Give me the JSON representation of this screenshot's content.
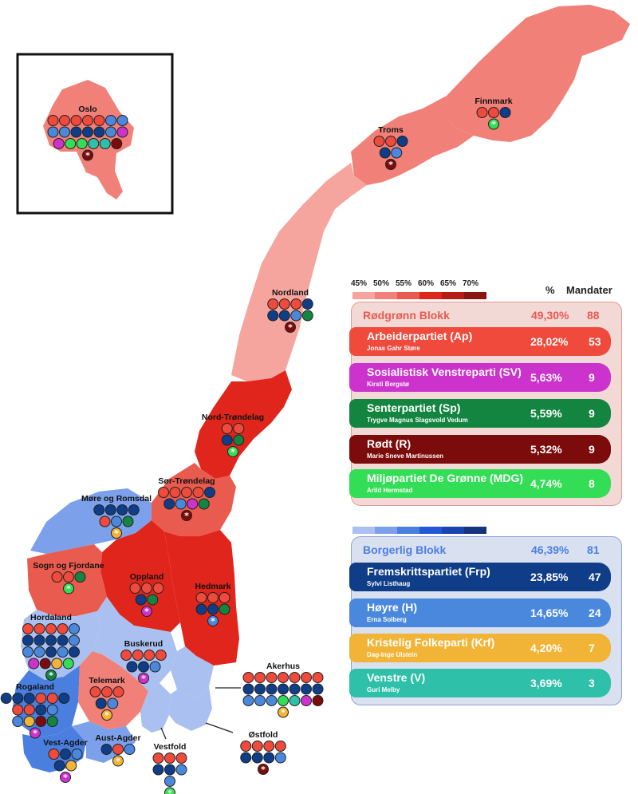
{
  "colors": {
    "ap": "#ef4a3c",
    "sv": "#cc33cc",
    "sp": "#148540",
    "r": "#7c0b0b",
    "mdg": "#33dd55",
    "frp": "#0f3d87",
    "h": "#4a88dd",
    "krf": "#f2b436",
    "v": "#2ec0a8",
    "red_blok_bg": "#f3d9d6",
    "red_blok_border": "#e59a92",
    "blue_blok_bg": "#d9e0f0",
    "blue_blok_border": "#8ea4d8"
  },
  "legend": {
    "red_scale": [
      {
        "label": "45%",
        "color": "#f5a59e"
      },
      {
        "label": "50%",
        "color": "#f08078"
      },
      {
        "label": "55%",
        "color": "#ea5b4f"
      },
      {
        "label": "60%",
        "color": "#e0261c"
      },
      {
        "label": "65%",
        "color": "#b81a14"
      },
      {
        "label": "70%",
        "color": "#8c1410"
      }
    ],
    "blue_scale": [
      "#a9c0f0",
      "#7da0ea",
      "#4a7fe0",
      "#2359d6",
      "#1a45b0",
      "#16347e"
    ],
    "pct_header": "%",
    "seats_header": "Mandater"
  },
  "blocks": [
    {
      "name": "Rødgrønn Blokk",
      "pct": "49,30%",
      "seats": "88",
      "text_color": "#e85a4e",
      "parties": [
        {
          "name": "Arbeiderpartiet (Ap)",
          "leader": "Jonas Gahr Støre",
          "pct": "28,02%",
          "seats": "53",
          "color": "#ef4a3c"
        },
        {
          "name": "Sosialistisk Venstreparti (SV)",
          "leader": "Kirsti Bergstø",
          "pct": "5,63%",
          "seats": "9",
          "color": "#cc33cc"
        },
        {
          "name": "Senterpartiet (Sp)",
          "leader": "Trygve Magnus Slagsvold Vedum",
          "pct": "5,59%",
          "seats": "9",
          "color": "#148540"
        },
        {
          "name": "Rødt (R)",
          "leader": "Marie Sneve Martinussen",
          "pct": "5,32%",
          "seats": "9",
          "color": "#7c0b0b"
        },
        {
          "name": "Miljøpartiet De Grønne (MDG)",
          "leader": "Arild Hermstad",
          "pct": "4,74%",
          "seats": "8",
          "color": "#33dd55"
        }
      ]
    },
    {
      "name": "Borgerlig Blokk",
      "pct": "46,39%",
      "seats": "81",
      "text_color": "#4a7fe0",
      "parties": [
        {
          "name": "Fremskrittspartiet (Frp)",
          "leader": "Sylvi Listhaug",
          "pct": "23,85%",
          "seats": "47",
          "color": "#0f3d87"
        },
        {
          "name": "Høyre (H)",
          "leader": "Erna Solberg",
          "pct": "14,65%",
          "seats": "24",
          "color": "#4a88dd"
        },
        {
          "name": "Kristelig Folkeparti (Krf)",
          "leader": "Dag-Inge Ulstein",
          "pct": "4,20%",
          "seats": "7",
          "color": "#f2b436"
        },
        {
          "name": "Venstre (V)",
          "leader": "Guri Melby",
          "pct": "3,69%",
          "seats": "3",
          "color": "#2ec0a8"
        }
      ]
    }
  ],
  "counties": [
    {
      "name": "Oslo",
      "fill": "#f08078",
      "rows": [
        [
          "ap",
          "ap",
          "ap",
          "ap",
          "ap",
          "h",
          "h"
        ],
        [
          "h",
          "h",
          "frp",
          "frp",
          "frp",
          "h",
          "sv"
        ],
        [
          "sv",
          "mdg",
          "mdg",
          "v",
          "v",
          "r"
        ]
      ],
      "star": "r"
    },
    {
      "name": "Finnmark",
      "fill": "#f08078",
      "rows": [
        [
          "ap",
          "ap",
          "frp"
        ]
      ],
      "star": "mdg"
    },
    {
      "name": "Troms",
      "fill": "#f08078",
      "rows": [
        [
          "ap",
          "ap",
          "frp"
        ],
        [
          "frp",
          "h"
        ]
      ],
      "star": "r"
    },
    {
      "name": "Nordland",
      "fill": "#f5a59e",
      "rows": [
        [
          "ap",
          "ap",
          "ap",
          "frp"
        ],
        [
          "frp",
          "frp",
          "h",
          "sp"
        ]
      ],
      "star": "r"
    },
    {
      "name": "Nord-Trøndelag",
      "fill": "#e0261c",
      "rows": [
        [
          "ap",
          "ap"
        ],
        [
          "frp",
          "sp"
        ]
      ],
      "star": "mdg"
    },
    {
      "name": "Sør-Trøndelag",
      "fill": "#ea5b4f",
      "rows": [
        [
          "ap",
          "ap",
          "ap",
          "ap",
          "frp"
        ],
        [
          "frp",
          "h",
          "sv",
          "sp"
        ]
      ],
      "star": "r"
    },
    {
      "name": "Møre og Romsdal",
      "fill": "#7da0ea",
      "rows": [
        [
          "frp",
          "frp",
          "frp",
          "frp"
        ],
        [
          "ap",
          "h",
          "sp"
        ]
      ],
      "star": "krf"
    },
    {
      "name": "Sogn og Fjordane",
      "fill": "#ea5b4f",
      "rows": [
        [
          "ap",
          "ap",
          "sp"
        ]
      ],
      "star": "mdg"
    },
    {
      "name": "Oppland",
      "fill": "#e0261c",
      "rows": [
        [
          "ap",
          "ap",
          "ap"
        ],
        [
          "frp",
          "sp"
        ]
      ],
      "star": "sv"
    },
    {
      "name": "Hedmark",
      "fill": "#e0261c",
      "rows": [
        [
          "ap",
          "ap",
          "ap"
        ],
        [
          "frp",
          "frp",
          "sp"
        ]
      ],
      "star": "h"
    },
    {
      "name": "Hordaland",
      "fill": "#a9c0f0",
      "rows": [
        [
          "ap",
          "ap",
          "ap",
          "ap",
          "h"
        ],
        [
          "frp",
          "frp",
          "frp",
          "frp",
          "h"
        ],
        [
          "h",
          "h",
          "frp",
          "h",
          "frp"
        ],
        [
          "sv",
          "r",
          "krf",
          "mdg"
        ]
      ],
      "star": "sp"
    },
    {
      "name": "Buskerud",
      "fill": "#a9c0f0",
      "rows": [
        [
          "ap",
          "ap",
          "ap",
          "ap"
        ],
        [
          "frp",
          "frp",
          "h"
        ]
      ],
      "star": "sv"
    },
    {
      "name": "Telemark",
      "fill": "#f08078",
      "rows": [
        [
          "ap",
          "ap",
          "ap"
        ],
        [
          "frp",
          "h"
        ]
      ],
      "star": "krf"
    },
    {
      "name": "Akerhus",
      "fill": "#a9c0f0",
      "rows": [
        [
          "ap",
          "ap",
          "ap",
          "ap",
          "ap",
          "ap",
          "ap"
        ],
        [
          "frp",
          "frp",
          "frp",
          "frp",
          "frp",
          "frp",
          "frp"
        ],
        [
          "h",
          "h",
          "h",
          "mdg",
          "v",
          "sv",
          "r"
        ]
      ],
      "star": "krf"
    },
    {
      "name": "Rogaland",
      "fill": "#4a7fe0",
      "rows": [
        [
          "frp",
          "frp",
          "frp",
          "ap",
          "ap",
          "frp"
        ],
        [
          "ap",
          "ap",
          "frp",
          "h"
        ],
        [
          "h",
          "krf",
          "r",
          "sp"
        ]
      ],
      "star": "sv"
    },
    {
      "name": "Aust-Agder",
      "fill": "#7da0ea",
      "rows": [
        [
          "frp",
          "ap",
          "h"
        ]
      ],
      "star": "krf"
    },
    {
      "name": "Vest-Agder",
      "fill": "#4a7fe0",
      "rows": [
        [
          "ap",
          "frp",
          "h"
        ],
        [
          "frp",
          "krf"
        ]
      ],
      "star": "sv"
    },
    {
      "name": "Vestfold",
      "fill": "#a9c0f0",
      "rows": [
        [
          "ap",
          "ap",
          "ap"
        ],
        [
          "frp",
          "frp",
          "h"
        ],
        [
          "h"
        ]
      ],
      "star": "mdg"
    },
    {
      "name": "Østfold",
      "fill": "#a9c0f0",
      "rows": [
        [
          "ap",
          "ap",
          "ap",
          "ap"
        ],
        [
          "frp",
          "frp",
          "frp",
          "h"
        ]
      ],
      "star": "r"
    }
  ]
}
